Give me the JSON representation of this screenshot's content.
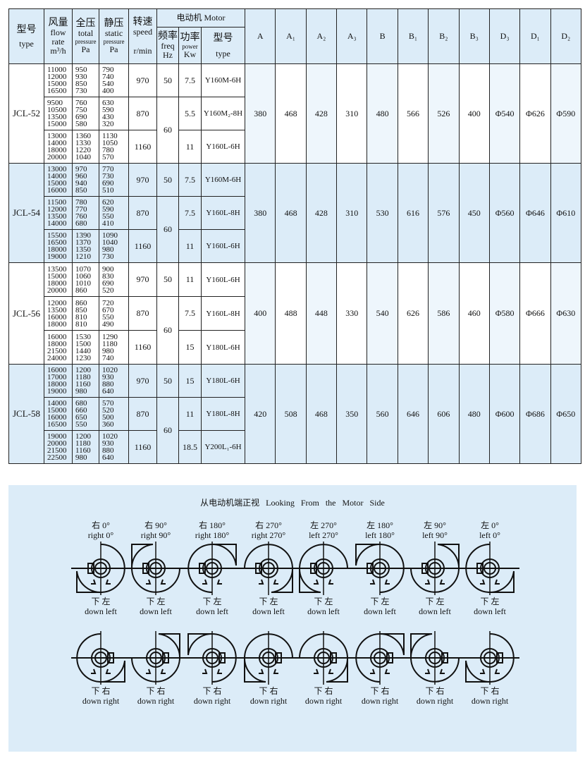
{
  "header": {
    "type_cn": "型号",
    "type_en": "type",
    "flow_cn": "风量",
    "flow_en": "flow rate",
    "flow_unit": "m³/h",
    "total_cn": "全压",
    "total_en1": "total",
    "total_en2": "pressure",
    "total_unit": "Pa",
    "static_cn": "静压",
    "static_en1": "static",
    "static_en2": "pressure",
    "static_unit": "Pa",
    "speed_cn": "转速",
    "speed_en": "speed",
    "speed_unit": "r/min",
    "motor": "电动机 Motor",
    "freq_cn": "频率",
    "freq_en": "freq",
    "freq_unit": "Hz",
    "power_cn": "功率",
    "power_en": "power",
    "power_unit": "Kw",
    "mtype_cn": "型号",
    "mtype_en": "type",
    "dims": [
      "A",
      "A₁",
      "A₂",
      "A₃",
      "B",
      "B₁",
      "B₂",
      "B₃",
      "D₃",
      "D₁",
      "D₂"
    ]
  },
  "models": [
    {
      "name": "JCL-52",
      "dims": [
        "380",
        "468",
        "428",
        "310",
        "480",
        "566",
        "526",
        "400",
        "Φ540",
        "Φ626",
        "Φ590"
      ],
      "groups": [
        {
          "flow": [
            "11000",
            "12000",
            "15000",
            "16500"
          ],
          "total": [
            "950",
            "930",
            "850",
            "730"
          ],
          "static": [
            "790",
            "740",
            "540",
            "400"
          ],
          "speed": "970",
          "freq": "50",
          "power": "7.5",
          "mtype": "Y160M-6H"
        },
        {
          "flow": [
            "9500",
            "10500",
            "13500",
            "15000"
          ],
          "total": [
            "760",
            "750",
            "690",
            "580"
          ],
          "static": [
            "630",
            "590",
            "430",
            "320"
          ],
          "speed": "870",
          "freq": "60",
          "power": "5.5",
          "mtype": "Y160M₂-8H"
        },
        {
          "flow": [
            "13000",
            "14000",
            "18000",
            "20000"
          ],
          "total": [
            "1360",
            "1330",
            "1220",
            "1040"
          ],
          "static": [
            "1130",
            "1050",
            "780",
            "570"
          ],
          "speed": "1160",
          "power": "11",
          "mtype": "Y160L-6H"
        }
      ]
    },
    {
      "name": "JCL-54",
      "dims": [
        "380",
        "468",
        "428",
        "310",
        "530",
        "616",
        "576",
        "450",
        "Φ560",
        "Φ646",
        "Φ610"
      ],
      "groups": [
        {
          "flow": [
            "13000",
            "14000",
            "15000",
            "16000"
          ],
          "total": [
            "970",
            "960",
            "940",
            "850"
          ],
          "static": [
            "770",
            "730",
            "690",
            "510"
          ],
          "speed": "970",
          "freq": "50",
          "power": "7.5",
          "mtype": "Y160M-6H"
        },
        {
          "flow": [
            "11500",
            "12000",
            "13500",
            "14000"
          ],
          "total": [
            "780",
            "770",
            "760",
            "680"
          ],
          "static": [
            "620",
            "590",
            "550",
            "410"
          ],
          "speed": "870",
          "freq": "60",
          "power": "7.5",
          "mtype": "Y160L-8H"
        },
        {
          "flow": [
            "15500",
            "16500",
            "18000",
            "19000"
          ],
          "total": [
            "1390",
            "1370",
            "1350",
            "1210"
          ],
          "static": [
            "1090",
            "1040",
            "980",
            "730"
          ],
          "speed": "1160",
          "power": "11",
          "mtype": "Y160L-6H"
        }
      ]
    },
    {
      "name": "JCL-56",
      "dims": [
        "400",
        "488",
        "448",
        "330",
        "540",
        "626",
        "586",
        "460",
        "Φ580",
        "Φ666",
        "Φ630"
      ],
      "groups": [
        {
          "flow": [
            "13500",
            "15000",
            "18000",
            "20000"
          ],
          "total": [
            "1070",
            "1060",
            "1010",
            "860"
          ],
          "static": [
            "900",
            "830",
            "690",
            "520"
          ],
          "speed": "970",
          "freq": "50",
          "power": "11",
          "mtype": "Y160L-6H"
        },
        {
          "flow": [
            "12000",
            "13500",
            "16000",
            "18000"
          ],
          "total": [
            "860",
            "850",
            "810",
            "810"
          ],
          "static": [
            "720",
            "670",
            "550",
            "490"
          ],
          "speed": "870",
          "freq": "60",
          "power": "7.5",
          "mtype": "Y160L-8H"
        },
        {
          "flow": [
            "16000",
            "18000",
            "21500",
            "24000"
          ],
          "total": [
            "1530",
            "1500",
            "1440",
            "1230"
          ],
          "static": [
            "1290",
            "1180",
            "980",
            "740"
          ],
          "speed": "1160",
          "power": "15",
          "mtype": "Y180L-6H"
        }
      ]
    },
    {
      "name": "JCL-58",
      "dims": [
        "420",
        "508",
        "468",
        "350",
        "560",
        "646",
        "606",
        "480",
        "Φ600",
        "Φ686",
        "Φ650"
      ],
      "groups": [
        {
          "flow": [
            "16000",
            "17000",
            "18000",
            "19000"
          ],
          "total": [
            "1200",
            "1180",
            "1160",
            "980"
          ],
          "static": [
            "1020",
            "930",
            "880",
            "640"
          ],
          "speed": "970",
          "freq": "50",
          "power": "15",
          "mtype": "Y180L-6H"
        },
        {
          "flow": [
            "14000",
            "15000",
            "16000",
            "16500"
          ],
          "total": [
            "680",
            "660",
            "650",
            "550"
          ],
          "static": [
            "570",
            "520",
            "500",
            "360"
          ],
          "speed": "870",
          "freq": "60",
          "power": "11",
          "mtype": "Y180L-8H"
        },
        {
          "flow": [
            "19000",
            "20000",
            "21500",
            "22500"
          ],
          "total": [
            "1200",
            "1180",
            "1160",
            "980"
          ],
          "static": [
            "1020",
            "930",
            "880",
            "640"
          ],
          "speed": "1160",
          "power": "18.5",
          "mtype": "Y200L₁-6H"
        }
      ]
    }
  ],
  "diagram": {
    "title": "从电动机端正视 Looking From the Motor Side",
    "top": [
      {
        "cn": "右 0°",
        "en": "right 0°"
      },
      {
        "cn": "右 90°",
        "en": "right 90°"
      },
      {
        "cn": "右 180°",
        "en": "right 180°"
      },
      {
        "cn": "右 270°",
        "en": "right 270°"
      },
      {
        "cn": "左 270°",
        "en": "left 270°"
      },
      {
        "cn": "左 180°",
        "en": "left 180°"
      },
      {
        "cn": "左 90°",
        "en": "left 90°"
      },
      {
        "cn": "左 0°",
        "en": "left 0°"
      }
    ],
    "row1_cn": "下 左",
    "row1_en": "down left",
    "row2_cn": "下 右",
    "row2_en": "down right"
  }
}
